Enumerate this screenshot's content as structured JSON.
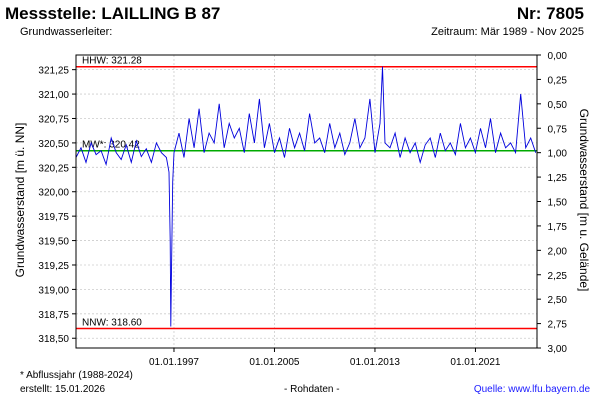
{
  "header": {
    "title": "Messstelle: LAILLING B 87",
    "number": "Nr: 7805",
    "aquifer_label": "Grundwasserleiter:",
    "period": "Zeitraum: Mär 1989 - Nov 2025"
  },
  "footer": {
    "note": "* Abflussjahr (1988-2024)",
    "created": "erstellt:  15.01.2026",
    "raw": "- Rohdaten -",
    "source": "Quelle: www.lfu.bayern.de"
  },
  "chart_data": {
    "type": "line",
    "ylabel": "Grundwasserstand [m ü. NN]",
    "y2label": "Grundwasserstand [m u. Gelände]",
    "ylim": [
      318.4,
      321.4
    ],
    "y2lim": [
      3.0,
      0.0
    ],
    "yticks": [
      "318,50",
      "318,75",
      "319,00",
      "319,25",
      "319,50",
      "319,75",
      "320,00",
      "320,25",
      "320,50",
      "320,75",
      "321,00",
      "321,25"
    ],
    "y2ticks": [
      "3,00",
      "2,75",
      "2,50",
      "2,25",
      "2,00",
      "1,75",
      "1,50",
      "1,25",
      "1,00",
      "0,75",
      "0,50",
      "0,25",
      "0,00"
    ],
    "xlim": [
      1989.2,
      2025.9
    ],
    "xticks": [
      {
        "v": 1997,
        "label": "01.01.1997"
      },
      {
        "v": 2005,
        "label": "01.01.2005"
      },
      {
        "v": 2013,
        "label": "01.01.2013"
      },
      {
        "v": 2021,
        "label": "01.01.2021"
      }
    ],
    "grid": true,
    "reference_lines": [
      {
        "label": "HHW: 321.28",
        "value": 321.28,
        "color": "#ff0000"
      },
      {
        "label": "MW*: 320.42",
        "value": 320.42,
        "color": "#00aa00"
      },
      {
        "label": "NNW: 318.60",
        "value": 318.6,
        "color": "#ff0000"
      }
    ],
    "series": [
      {
        "color": "#0000dd",
        "x": [
          1989.2,
          1989.6,
          1990.0,
          1990.4,
          1990.8,
          1991.2,
          1991.6,
          1992.0,
          1992.4,
          1992.8,
          1993.2,
          1993.6,
          1994.0,
          1994.4,
          1994.8,
          1995.2,
          1995.6,
          1996.0,
          1996.4,
          1996.6,
          1996.7,
          1996.75,
          1996.8,
          1996.9,
          1997.0,
          1997.4,
          1997.8,
          1998.2,
          1998.6,
          1999.0,
          1999.4,
          1999.8,
          2000.2,
          2000.6,
          2001.0,
          2001.4,
          2001.8,
          2002.2,
          2002.6,
          2003.0,
          2003.4,
          2003.8,
          2004.2,
          2004.6,
          2005.0,
          2005.4,
          2005.8,
          2006.2,
          2006.6,
          2007.0,
          2007.4,
          2007.8,
          2008.2,
          2008.6,
          2009.0,
          2009.4,
          2009.8,
          2010.2,
          2010.6,
          2011.0,
          2011.4,
          2011.8,
          2012.2,
          2012.6,
          2013.0,
          2013.4,
          2013.6,
          2013.8,
          2014.2,
          2014.6,
          2015.0,
          2015.4,
          2015.8,
          2016.2,
          2016.6,
          2017.0,
          2017.4,
          2017.8,
          2018.2,
          2018.6,
          2019.0,
          2019.4,
          2019.8,
          2020.2,
          2020.6,
          2021.0,
          2021.4,
          2021.8,
          2022.2,
          2022.6,
          2023.0,
          2023.4,
          2023.8,
          2024.2,
          2024.6,
          2025.0,
          2025.4,
          2025.8
        ],
        "y": [
          320.35,
          320.45,
          320.3,
          320.5,
          320.38,
          320.42,
          320.28,
          320.55,
          320.4,
          320.33,
          320.48,
          320.3,
          320.52,
          320.36,
          320.44,
          320.3,
          320.5,
          320.4,
          320.35,
          320.2,
          319.5,
          318.62,
          319.2,
          320.1,
          320.4,
          320.6,
          320.35,
          320.75,
          320.45,
          320.85,
          320.4,
          320.6,
          320.5,
          320.9,
          320.45,
          320.7,
          320.55,
          320.65,
          320.4,
          320.8,
          320.5,
          320.95,
          320.45,
          320.7,
          320.4,
          320.55,
          320.35,
          320.65,
          320.45,
          320.6,
          320.42,
          320.8,
          320.5,
          320.55,
          320.4,
          320.7,
          320.45,
          320.6,
          320.38,
          320.5,
          320.75,
          320.45,
          320.55,
          320.95,
          320.4,
          320.7,
          321.28,
          320.5,
          320.45,
          320.6,
          320.35,
          320.55,
          320.4,
          320.5,
          320.3,
          320.48,
          320.55,
          320.35,
          320.6,
          320.42,
          320.5,
          320.38,
          320.7,
          320.45,
          320.55,
          320.4,
          320.65,
          320.45,
          320.75,
          320.4,
          320.6,
          320.45,
          320.5,
          320.4,
          321.0,
          320.45,
          320.55,
          320.4
        ]
      }
    ]
  }
}
